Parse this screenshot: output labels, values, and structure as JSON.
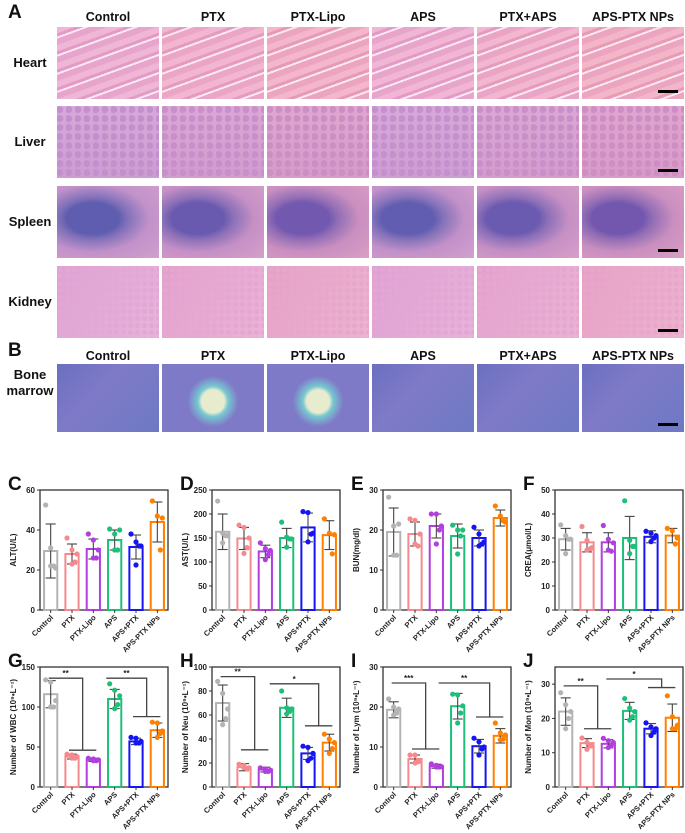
{
  "panels": {
    "A": "A",
    "B": "B",
    "C": "C",
    "D": "D",
    "E": "E",
    "F": "F",
    "G": "G",
    "H": "H",
    "I": "I",
    "J": "J"
  },
  "groups": [
    "Control",
    "PTX",
    "PTX-Lipo",
    "APS",
    "PTX+APS",
    "APS-PTX NPs"
  ],
  "organs": [
    "Heart",
    "Liver",
    "Spleen",
    "Kidney"
  ],
  "bone_label": [
    "Bone",
    "marrow"
  ],
  "colors": {
    "Control": "#b3b3b3",
    "PTX": "#f58a8e",
    "PTX-Lipo": "#b23ee0",
    "APS": "#1fbf7a",
    "APS+PTX": "#1414f5",
    "APS-PTX NPs": "#ff8000"
  },
  "chart_data": [
    {
      "id": "C",
      "type": "bar",
      "ylabel": "ALT(U/L)",
      "ylim": [
        0,
        60
      ],
      "ticks": [
        0,
        20,
        40,
        60
      ],
      "categories": [
        "Control",
        "PTX",
        "PTX-Lipo",
        "APS",
        "APS+PTX",
        "APS-PTX NPs"
      ],
      "values": [
        29.5,
        28,
        30.5,
        35,
        31.5,
        44
      ],
      "sd": [
        13.5,
        5,
        5,
        5,
        6,
        10
      ],
      "points": [
        [
          52.5,
          31,
          21,
          22,
          22
        ],
        [
          36,
          30,
          28,
          24,
          23
        ],
        [
          38,
          35,
          30,
          26,
          26
        ],
        [
          40.5,
          38,
          40,
          30,
          30
        ],
        [
          38,
          34,
          32,
          32,
          22.5
        ],
        [
          54.5,
          47,
          46,
          30
        ]
      ],
      "brackets": []
    },
    {
      "id": "D",
      "type": "bar",
      "ylabel": "AST(U/L)",
      "ylim": [
        0,
        250
      ],
      "ticks": [
        0,
        50,
        100,
        150,
        200,
        250
      ],
      "categories": [
        "Control",
        "PTX",
        "PTX-Lipo",
        "APS",
        "APS+PTX",
        "APS-PTX NPs"
      ],
      "values": [
        163,
        149,
        122,
        150,
        172,
        156
      ],
      "sd": [
        37,
        23,
        13,
        20,
        30,
        30
      ],
      "points": [
        [
          227,
          160,
          155,
          155,
          140
        ],
        [
          177,
          172,
          150,
          130,
          118
        ],
        [
          140,
          128,
          124,
          115,
          105
        ],
        [
          183,
          152,
          148,
          148,
          131
        ],
        [
          205,
          203,
          160,
          158,
          142
        ],
        [
          190,
          160,
          157,
          117
        ]
      ],
      "brackets": []
    },
    {
      "id": "E",
      "type": "bar",
      "ylabel": "BUN(mg/dl)",
      "ylim": [
        0,
        30
      ],
      "ticks": [
        0,
        10,
        20,
        30
      ],
      "categories": [
        "Control",
        "PTX",
        "PTX-Lipo",
        "APS",
        "APS+PTX",
        "APS-PTX NPs"
      ],
      "values": [
        19.5,
        19,
        21,
        18.5,
        18,
        23
      ],
      "sd": [
        6,
        3,
        3,
        3,
        2,
        2
      ],
      "points": [
        [
          28.2,
          21,
          21.5,
          13.7,
          13.7
        ],
        [
          22.8,
          22.4,
          19,
          16,
          16.5
        ],
        [
          24,
          24,
          21,
          20,
          16.5
        ],
        [
          21.2,
          20,
          20,
          18.5,
          14
        ],
        [
          20.7,
          19,
          17,
          16.5,
          16
        ],
        [
          26,
          23.5,
          22,
          22.3
        ]
      ],
      "brackets": []
    },
    {
      "id": "F",
      "type": "bar",
      "ylabel": "CREA(μmol/L)",
      "ylim": [
        0,
        50
      ],
      "ticks": [
        0,
        10,
        20,
        30,
        40,
        50
      ],
      "categories": [
        "Control",
        "PTX",
        "PTX-Lipo",
        "APS",
        "APS+PTX",
        "APS-PTX NPs"
      ],
      "values": [
        29.5,
        28.2,
        28.2,
        30,
        30.5,
        31
      ],
      "sd": [
        4.5,
        4,
        4,
        9,
        2.5,
        3
      ],
      "points": [
        [
          35.5,
          31,
          29.5,
          29.5,
          23.5
        ],
        [
          34.8,
          29,
          26,
          25.5,
          25
        ],
        [
          35.2,
          29.5,
          28,
          24.5,
          25
        ],
        [
          45.5,
          29,
          26.5,
          26.5,
          23.5
        ],
        [
          32.8,
          32,
          31,
          30,
          28.5
        ],
        [
          34,
          33,
          30,
          27.5
        ]
      ],
      "brackets": []
    },
    {
      "id": "G",
      "type": "bar",
      "ylabel": "Number of WBC  (10⁹•L⁻¹)",
      "ylim": [
        0,
        150
      ],
      "ticks": [
        0,
        50,
        100,
        150
      ],
      "categories": [
        "Control",
        "PTX",
        "PTX-Lipo",
        "APS",
        "APS+PTX",
        "APS-PTX NPs"
      ],
      "values": [
        116,
        38,
        34,
        110,
        57,
        71
      ],
      "sd": [
        17,
        3,
        2,
        12,
        4,
        9
      ],
      "points": [
        [
          134,
          131,
          108,
          100,
          100
        ],
        [
          41,
          40,
          38,
          36,
          36
        ],
        [
          36,
          35,
          34,
          33,
          33
        ],
        [
          129,
          121,
          114,
          103,
          98
        ],
        [
          62,
          61,
          57,
          55,
          55
        ],
        [
          81,
          80,
          70,
          67,
          62
        ]
      ],
      "brackets": [
        {
          "from": 0,
          "to": [
            1,
            2
          ],
          "top": 136,
          "low": 46,
          "label": "**"
        },
        {
          "from": 2.7,
          "to": [
            4,
            5
          ],
          "top": 136,
          "low": 88,
          "label": "**"
        }
      ]
    },
    {
      "id": "H",
      "type": "bar",
      "ylabel": "Number of Neu  (10⁹•L⁻¹)",
      "ylim": [
        0,
        100
      ],
      "ticks": [
        0,
        20,
        40,
        60,
        80,
        100
      ],
      "categories": [
        "Control",
        "PTX",
        "PTX-Lipo",
        "APS",
        "APS+PTX",
        "APS-PTX NPs"
      ],
      "values": [
        70,
        16.5,
        14.5,
        66,
        28,
        37
      ],
      "sd": [
        15,
        3,
        2,
        8,
        5,
        7
      ],
      "points": [
        [
          88,
          78,
          65,
          57,
          52
        ],
        [
          19,
          18,
          16,
          15,
          16
        ],
        [
          16,
          15,
          14,
          13,
          13
        ],
        [
          80,
          66,
          65,
          63,
          61
        ],
        [
          34,
          33,
          28,
          24,
          22
        ],
        [
          44,
          40,
          37,
          32,
          28
        ]
      ],
      "brackets": [
        {
          "from": 0,
          "to": [
            1,
            2
          ],
          "top": 92,
          "low": 31,
          "label": "**"
        },
        {
          "from": 2.3,
          "to": [
            4,
            5
          ],
          "top": 86,
          "low": 51,
          "label": "*"
        }
      ]
    },
    {
      "id": "I",
      "type": "bar",
      "ylabel": "Number of Lym  (10⁹•L⁻¹)",
      "ylim": [
        0,
        30
      ],
      "ticks": [
        0,
        10,
        20,
        30
      ],
      "categories": [
        "Control",
        "PTX",
        "PTX-Lipo",
        "APS",
        "APS+PTX",
        "APS-PTX NPs"
      ],
      "values": [
        19.3,
        7,
        5.2,
        20.2,
        10.2,
        12.8
      ],
      "sd": [
        2,
        1,
        0.5,
        3.2,
        1.7,
        1.8
      ],
      "points": [
        [
          22,
          20,
          19.5,
          18.5,
          18
        ],
        [
          8,
          8,
          6.5,
          6.3,
          6
        ],
        [
          5.8,
          5.4,
          5.1,
          5,
          5
        ],
        [
          23.2,
          23,
          20.3,
          18.5,
          16
        ],
        [
          12.2,
          11.3,
          10,
          9.5,
          8
        ],
        [
          16,
          13.5,
          13,
          12,
          11.8
        ]
      ],
      "brackets": [
        {
          "from": 0,
          "to": [
            1,
            2
          ],
          "top": 26,
          "low": 9.5,
          "label": "***"
        },
        {
          "from": 2.2,
          "to": [
            4,
            5
          ],
          "top": 26,
          "low": 17.5,
          "label": "**"
        }
      ]
    },
    {
      "id": "J",
      "type": "bar",
      "ylabel": "Number of Mon  (10⁹•L⁻¹)",
      "ylim": [
        0,
        35
      ],
      "ticks": [
        0,
        10,
        20,
        30
      ],
      "categories": [
        "Control",
        "PTX",
        "PTX-Lipo",
        "APS",
        "APS+PTX",
        "APS-PTX NPs"
      ],
      "values": [
        22,
        12.8,
        12.6,
        22.2,
        17,
        20.2
      ],
      "sd": [
        4,
        1.3,
        1.2,
        2.5,
        1.5,
        4
      ],
      "points": [
        [
          27.5,
          24,
          22,
          20,
          17
        ],
        [
          14.3,
          13,
          12,
          12,
          11
        ],
        [
          14.2,
          13.5,
          13,
          12,
          11.5
        ],
        [
          25.8,
          23,
          22,
          20.5,
          19.5
        ],
        [
          18.7,
          17.5,
          17,
          16,
          15
        ],
        [
          26.6,
          20.5,
          18,
          17,
          17
        ]
      ],
      "brackets": [
        {
          "from": 0,
          "to": [
            1,
            2
          ],
          "top": 29.5,
          "low": 17,
          "label": "**"
        },
        {
          "from": 2,
          "to": [
            4,
            5
          ],
          "top": 31.5,
          "low": 29,
          "label": "*"
        }
      ]
    }
  ]
}
